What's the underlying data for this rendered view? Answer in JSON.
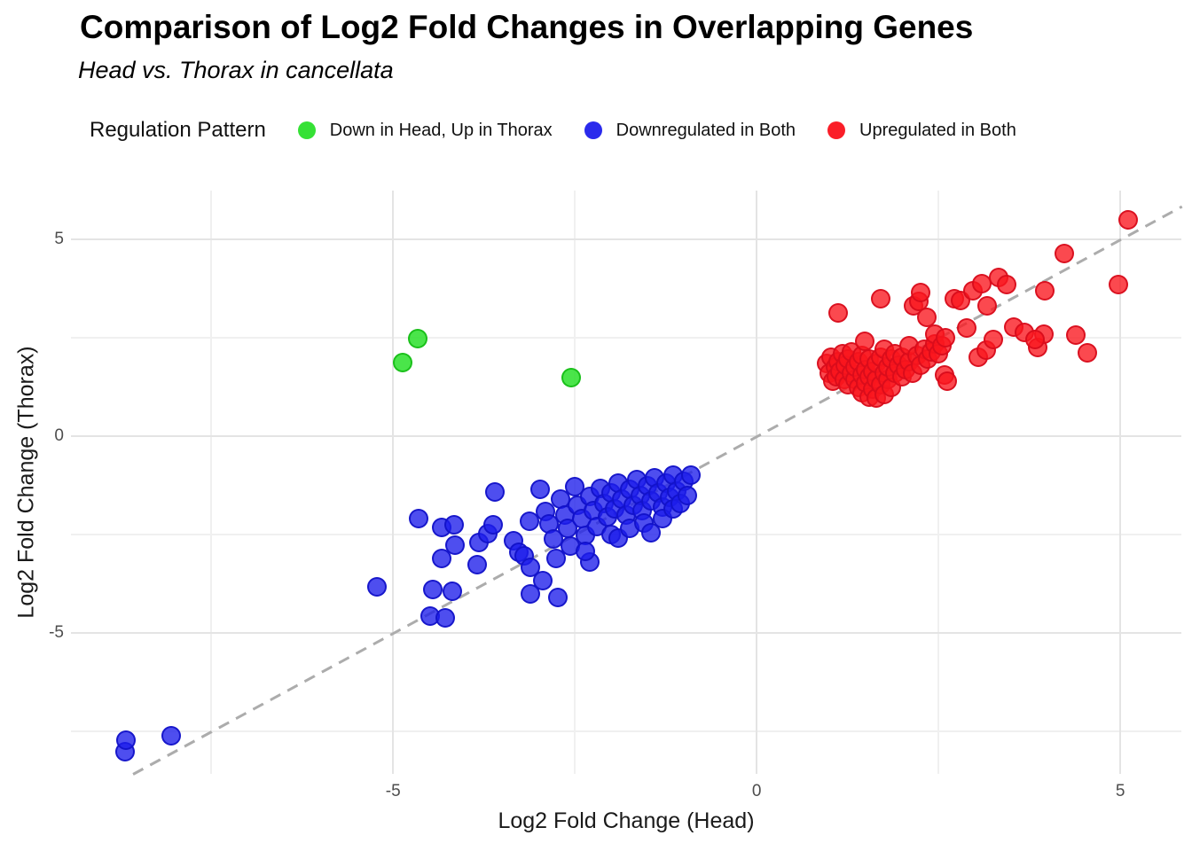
{
  "header": {
    "title": "Comparison of Log2 Fold Changes in Overlapping Genes",
    "subtitle": "Head vs. Thorax in cancellata"
  },
  "legend": {
    "title": "Regulation Pattern",
    "position": "top",
    "items": [
      {
        "label": "Down in Head, Up in Thorax",
        "color": "#35e135"
      },
      {
        "label": "Downregulated in Both",
        "color": "#2a2aec"
      },
      {
        "label": "Upregulated in Both",
        "color": "#fa1e28"
      }
    ]
  },
  "chart_data": {
    "type": "scatter",
    "title": "Comparison of Log2 Fold Changes in Overlapping Genes",
    "subtitle": "Head vs. Thorax in cancellata",
    "xlabel": "Log2 Fold Change (Head)",
    "ylabel": "Log2 Fold Change (Thorax)",
    "xlim": [
      -9.43,
      5.84
    ],
    "ylim": [
      -8.58,
      6.24
    ],
    "x_major_ticks": [
      -5,
      0,
      5
    ],
    "x_minor_ticks": [
      -7.5,
      -2.5,
      2.5
    ],
    "y_major_ticks": [
      5,
      0,
      -5
    ],
    "y_minor_ticks": [
      2.5,
      -2.5,
      -7.5
    ],
    "grid": true,
    "legend_position": "top",
    "reference_line": {
      "type": "identity y=x",
      "style": "dashed",
      "color": "#acacac"
    },
    "colors": {
      "grid_major": "#e4e4e4",
      "grid_minor": "#f0f0f0",
      "tick_label": "#4d4d4d",
      "green_fill": "rgba(42,224,42,0.85)",
      "green_edge": "rgba(24,190,24,0.95)",
      "blue_fill": "rgba(28,28,235,0.78)",
      "blue_edge": "rgba(18,18,200,0.9)",
      "red_fill": "rgba(250,22,30,0.78)",
      "red_edge": "rgba(215,12,28,0.9)"
    },
    "series": [
      {
        "name": "Down in Head, Up in Thorax",
        "fill": "rgba(42,224,42,0.85)",
        "edge": "rgba(24,190,24,0.95)",
        "points": [
          [
            -4.87,
            1.87
          ],
          [
            -4.66,
            2.48
          ],
          [
            -2.55,
            1.49
          ]
        ]
      },
      {
        "name": "Downregulated in Both",
        "fill": "rgba(28,28,235,0.78)",
        "edge": "rgba(18,18,200,0.9)",
        "points": [
          [
            -8.68,
            -8.02
          ],
          [
            -8.67,
            -7.72
          ],
          [
            -8.05,
            -7.62
          ],
          [
            -5.22,
            -3.83
          ],
          [
            -4.65,
            -2.09
          ],
          [
            -4.49,
            -4.57
          ],
          [
            -4.45,
            -3.9
          ],
          [
            -4.33,
            -2.32
          ],
          [
            -4.33,
            -3.11
          ],
          [
            -4.28,
            -4.62
          ],
          [
            -4.18,
            -3.94
          ],
          [
            -4.16,
            -2.25
          ],
          [
            -4.15,
            -2.77
          ],
          [
            -3.85,
            -3.27
          ],
          [
            -3.82,
            -2.7
          ],
          [
            -3.7,
            -2.48
          ],
          [
            -3.63,
            -2.25
          ],
          [
            -3.6,
            -1.42
          ],
          [
            -3.35,
            -2.66
          ],
          [
            -3.27,
            -2.95
          ],
          [
            -3.2,
            -3.04
          ],
          [
            -3.12,
            -2.16
          ],
          [
            -3.11,
            -4.01
          ],
          [
            -3.11,
            -3.33
          ],
          [
            -2.94,
            -3.67
          ],
          [
            -2.74,
            -4.1
          ],
          [
            -2.98,
            -1.35
          ],
          [
            -2.9,
            -1.92
          ],
          [
            -2.86,
            -2.22
          ],
          [
            -2.8,
            -2.62
          ],
          [
            -2.76,
            -3.1
          ],
          [
            -2.7,
            -1.6
          ],
          [
            -2.64,
            -2.0
          ],
          [
            -2.6,
            -2.35
          ],
          [
            -2.56,
            -2.8
          ],
          [
            -2.5,
            -1.28
          ],
          [
            -2.46,
            -1.75
          ],
          [
            -2.4,
            -2.1
          ],
          [
            -2.36,
            -2.52
          ],
          [
            -2.3,
            -1.52
          ],
          [
            -2.3,
            -3.2
          ],
          [
            -2.35,
            -2.93
          ],
          [
            -2.25,
            -1.9
          ],
          [
            -2.2,
            -2.3
          ],
          [
            -2.15,
            -1.32
          ],
          [
            -2.1,
            -1.7
          ],
          [
            -2.05,
            -2.05
          ],
          [
            -2.0,
            -1.45
          ],
          [
            -2.0,
            -2.5
          ],
          [
            -1.95,
            -1.85
          ],
          [
            -1.9,
            -1.2
          ],
          [
            -1.9,
            -2.6
          ],
          [
            -1.85,
            -1.6
          ],
          [
            -1.8,
            -2.0
          ],
          [
            -1.75,
            -1.35
          ],
          [
            -1.75,
            -2.35
          ],
          [
            -1.7,
            -1.75
          ],
          [
            -1.65,
            -1.1
          ],
          [
            -1.6,
            -1.5
          ],
          [
            -1.58,
            -1.9
          ],
          [
            -1.55,
            -2.2
          ],
          [
            -1.5,
            -1.25
          ],
          [
            -1.45,
            -1.65
          ],
          [
            -1.45,
            -2.45
          ],
          [
            -1.4,
            -1.05
          ],
          [
            -1.35,
            -1.45
          ],
          [
            -1.3,
            -1.8
          ],
          [
            -1.3,
            -2.1
          ],
          [
            -1.25,
            -1.2
          ],
          [
            -1.2,
            -1.55
          ],
          [
            -1.15,
            -1.0
          ],
          [
            -1.15,
            -1.85
          ],
          [
            -1.1,
            -1.4
          ],
          [
            -1.05,
            -1.7
          ],
          [
            -1.0,
            -1.15
          ],
          [
            -0.95,
            -1.5
          ],
          [
            -0.9,
            -1.0
          ]
        ]
      },
      {
        "name": "Upregulated in Both",
        "fill": "rgba(250,22,30,0.78)",
        "edge": "rgba(215,12,28,0.9)",
        "points": [
          [
            0.96,
            1.85
          ],
          [
            1.0,
            1.6
          ],
          [
            1.02,
            2.0
          ],
          [
            1.05,
            1.4
          ],
          [
            1.08,
            1.75
          ],
          [
            1.1,
            1.5
          ],
          [
            1.12,
            1.9
          ],
          [
            1.15,
            1.65
          ],
          [
            1.18,
            2.1
          ],
          [
            1.2,
            1.45
          ],
          [
            1.22,
            1.8
          ],
          [
            1.25,
            1.3
          ],
          [
            1.25,
            1.95
          ],
          [
            1.3,
            1.6
          ],
          [
            1.3,
            2.15
          ],
          [
            1.35,
            1.45
          ],
          [
            1.35,
            1.75
          ],
          [
            1.4,
            1.25
          ],
          [
            1.4,
            1.9
          ],
          [
            1.45,
            1.1
          ],
          [
            1.45,
            1.55
          ],
          [
            1.45,
            2.05
          ],
          [
            1.49,
            2.41
          ],
          [
            1.5,
            1.35
          ],
          [
            1.5,
            1.7
          ],
          [
            1.55,
            1.0
          ],
          [
            1.55,
            1.5
          ],
          [
            1.55,
            1.95
          ],
          [
            1.6,
            1.2
          ],
          [
            1.6,
            1.65
          ],
          [
            1.65,
            0.97
          ],
          [
            1.65,
            1.45
          ],
          [
            1.65,
            1.85
          ],
          [
            1.7,
            1.3
          ],
          [
            1.7,
            2.0
          ],
          [
            1.75,
            1.05
          ],
          [
            1.75,
            1.6
          ],
          [
            1.75,
            2.2
          ],
          [
            1.8,
            1.45
          ],
          [
            1.8,
            1.75
          ],
          [
            1.85,
            1.25
          ],
          [
            1.85,
            1.95
          ],
          [
            1.9,
            1.6
          ],
          [
            1.9,
            2.1
          ],
          [
            1.95,
            1.8
          ],
          [
            2.0,
            1.5
          ],
          [
            2.0,
            2.0
          ],
          [
            2.05,
            1.7
          ],
          [
            2.1,
            1.9
          ],
          [
            2.1,
            2.3
          ],
          [
            2.15,
            1.6
          ],
          [
            2.2,
            2.05
          ],
          [
            2.25,
            1.8
          ],
          [
            2.3,
            2.2
          ],
          [
            2.35,
            1.95
          ],
          [
            2.4,
            2.15
          ],
          [
            2.45,
            2.35
          ],
          [
            2.45,
            2.6
          ],
          [
            2.5,
            2.1
          ],
          [
            2.55,
            2.3
          ],
          [
            2.6,
            2.5
          ],
          [
            2.58,
            1.55
          ],
          [
            2.62,
            1.4
          ],
          [
            1.12,
            3.13
          ],
          [
            1.7,
            3.49
          ],
          [
            2.16,
            3.31
          ],
          [
            2.23,
            3.42
          ],
          [
            2.26,
            3.65
          ],
          [
            2.34,
            3.02
          ],
          [
            2.72,
            3.5
          ],
          [
            2.8,
            3.44
          ],
          [
            2.97,
            3.69
          ],
          [
            3.1,
            3.87
          ],
          [
            3.17,
            3.31
          ],
          [
            3.33,
            4.03
          ],
          [
            3.44,
            3.85
          ],
          [
            3.96,
            3.69
          ],
          [
            4.23,
            4.64
          ],
          [
            4.98,
            3.85
          ],
          [
            5.11,
            5.49
          ],
          [
            2.89,
            2.75
          ],
          [
            3.05,
            2.0
          ],
          [
            3.16,
            2.18
          ],
          [
            3.26,
            2.45
          ],
          [
            3.54,
            2.78
          ],
          [
            3.68,
            2.64
          ],
          [
            3.87,
            2.25
          ],
          [
            3.95,
            2.59
          ],
          [
            3.83,
            2.45
          ],
          [
            4.39,
            2.57
          ],
          [
            4.55,
            2.12
          ]
        ]
      }
    ]
  }
}
